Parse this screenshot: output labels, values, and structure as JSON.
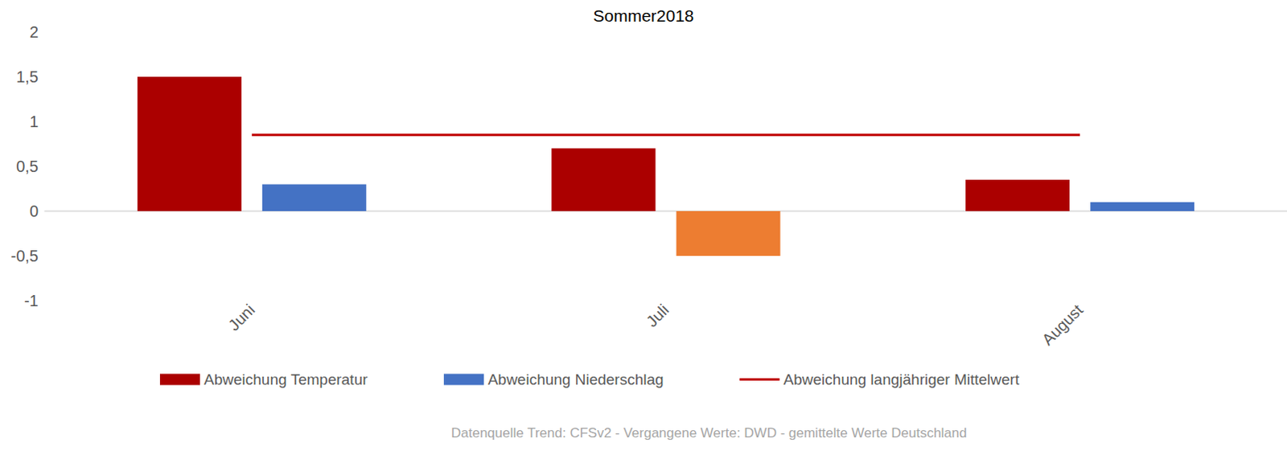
{
  "chart_data": {
    "type": "bar",
    "title": "Sommer2018",
    "annotation": "Datenquelle Trend: CFSv2 - Vergangene Werte: DWD - gemittelte Werte Deutschland",
    "categories": [
      "Juni",
      "Juli",
      "August"
    ],
    "series": [
      {
        "name": "Abweichung Temperatur",
        "color": "#ab0000",
        "type": "bar",
        "values": [
          1.5,
          0.7,
          0.35
        ]
      },
      {
        "name": "Abweichung Niederschlag",
        "color": "#4472c4",
        "type": "bar",
        "values": [
          0.3,
          null,
          0.1
        ]
      },
      {
        "name": "Abweichung langjähriger Mittelwert",
        "color": "#c00000",
        "type": "line",
        "line_style": "solid",
        "marker": "none",
        "values": [
          0.85,
          0.85,
          0.85
        ]
      },
      {
        "name": "Abweichung Temperatur",
        "color": "#4472c4",
        "type": "bar",
        "values": [
          null,
          null,
          null
        ]
      },
      {
        "name": "Abweichung Niederschlag",
        "color": "#ed7d31",
        "type": "bar",
        "values": [
          null,
          -0.5,
          null
        ]
      }
    ],
    "ylim": [
      -1,
      2
    ],
    "yticks": [
      -1,
      {
        "value": -0.5,
        "label": "-0,5"
      },
      0,
      {
        "value": 0.5,
        "label": "0,5"
      },
      1,
      {
        "value": 1.5,
        "label": "1,5"
      },
      2
    ],
    "grid": false,
    "legend": "bottom"
  }
}
